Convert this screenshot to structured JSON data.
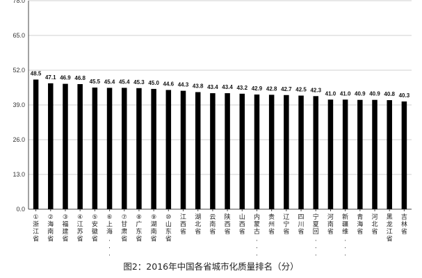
{
  "caption": "图2：2016年中国各省城市化质量排名（分）",
  "chart_data": {
    "type": "bar",
    "title": "图2：2016年中国各省城市化质量排名（分）",
    "ylim": [
      0,
      78
    ],
    "yticks": [
      "0.0",
      "13.0",
      "26.0",
      "39.0",
      "52.0",
      "65.0",
      "78.0"
    ],
    "grid": true,
    "bar_color": "#000000",
    "categories": [
      "①浙江省",
      "②海南省",
      "③福建省",
      "④江苏省",
      "⑤安徽省",
      "⑥上海...",
      "⑦甘肃省",
      "⑧广东省",
      "⑨湖南省",
      "⑩山东省",
      "江西省",
      "湖北省",
      "云南省",
      "陕西省",
      "山西省",
      "内蒙古...",
      "贵州省",
      "辽宁省",
      "四川省",
      "宁夏回...",
      "河南省",
      "新疆维...",
      "青海省",
      "河北省",
      "黑龙江省",
      "吉林省"
    ],
    "values": [
      48.5,
      47.1,
      46.9,
      46.8,
      45.5,
      45.4,
      45.4,
      45.3,
      45.0,
      44.6,
      44.3,
      43.8,
      43.4,
      43.4,
      43.2,
      42.9,
      42.8,
      42.7,
      42.5,
      42.3,
      41.0,
      41.0,
      40.9,
      40.9,
      40.8,
      40.3
    ],
    "value_labels": [
      "48.5",
      "47.1",
      "46.9",
      "46.8",
      "45.5",
      "45.4",
      "45.4",
      "45.3",
      "45.0",
      "44.6",
      "44.3",
      "43.8",
      "43.4",
      "43.4",
      "43.2",
      "42.9",
      "42.8",
      "42.7",
      "42.5",
      "42.3",
      "41.0",
      "41.0",
      "40.9",
      "40.9",
      "40.8",
      "40.3"
    ]
  }
}
